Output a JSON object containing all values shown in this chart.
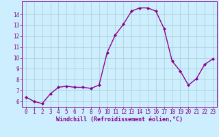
{
  "x": [
    0,
    1,
    2,
    3,
    4,
    5,
    6,
    7,
    8,
    9,
    10,
    11,
    12,
    13,
    14,
    15,
    16,
    17,
    18,
    19,
    20,
    21,
    22,
    23
  ],
  "y": [
    6.4,
    6.0,
    5.8,
    6.7,
    7.3,
    7.4,
    7.3,
    7.3,
    7.2,
    7.5,
    10.5,
    12.1,
    13.1,
    14.3,
    14.6,
    14.6,
    14.3,
    12.7,
    9.7,
    8.8,
    7.5,
    8.1,
    9.4,
    9.9
  ],
  "line_color": "#8B008B",
  "marker": "D",
  "marker_size": 2.0,
  "bg_color": "#cceeff",
  "grid_color": "#aacccc",
  "xlabel": "Windchill (Refroidissement éolien,°C)",
  "xlabel_fontsize": 6.0,
  "ylim": [
    5.5,
    15.2
  ],
  "xlim": [
    -0.5,
    23.5
  ],
  "yticks": [
    6,
    7,
    8,
    9,
    10,
    11,
    12,
    13,
    14
  ],
  "xticks": [
    0,
    1,
    2,
    3,
    4,
    5,
    6,
    7,
    8,
    9,
    10,
    11,
    12,
    13,
    14,
    15,
    16,
    17,
    18,
    19,
    20,
    21,
    22,
    23
  ],
  "tick_fontsize": 5.5,
  "tick_color": "#880088",
  "xlabel_color": "#880088",
  "spine_color": "#880088",
  "linewidth": 1.0
}
